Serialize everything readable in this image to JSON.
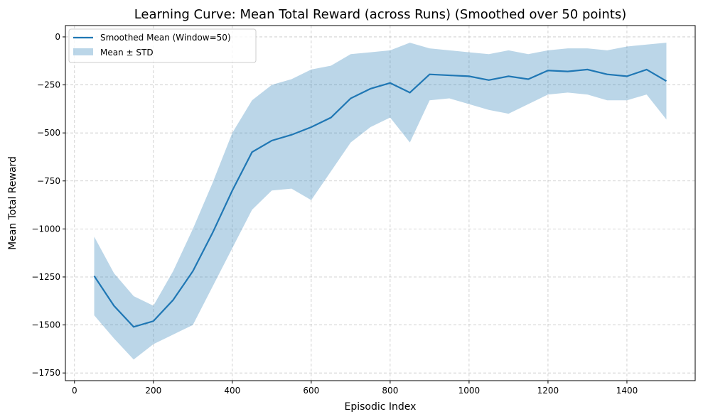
{
  "chart_data": {
    "type": "line",
    "title": "Learning Curve: Mean Total Reward (across Runs) (Smoothed over 50 points)",
    "xlabel": "Episodic Index",
    "ylabel": "Mean Total Reward",
    "x": [
      50,
      100,
      150,
      200,
      250,
      300,
      350,
      400,
      450,
      500,
      550,
      600,
      650,
      700,
      750,
      800,
      850,
      900,
      950,
      1000,
      1050,
      1100,
      1150,
      1200,
      1250,
      1300,
      1350,
      1400,
      1450,
      1500
    ],
    "series": [
      {
        "name": "Smoothed Mean (Window=50)",
        "color": "#1f77b4",
        "values": [
          -1245,
          -1400,
          -1510,
          -1480,
          -1370,
          -1220,
          -1020,
          -800,
          -600,
          -540,
          -510,
          -470,
          -420,
          -320,
          -270,
          -240,
          -290,
          -195,
          -200,
          -205,
          -225,
          -205,
          -220,
          -175,
          -180,
          -170,
          -195,
          -205,
          -170,
          -230
        ]
      }
    ],
    "band": {
      "name": "Mean ± STD",
      "color": "#1f77b4",
      "upper": [
        -1040,
        -1230,
        -1350,
        -1400,
        -1220,
        -1000,
        -760,
        -500,
        -330,
        -250,
        -220,
        -170,
        -150,
        -90,
        -80,
        -70,
        -30,
        -60,
        -70,
        -80,
        -90,
        -70,
        -90,
        -70,
        -60,
        -60,
        -70,
        -50,
        -40,
        -30
      ],
      "lower": [
        -1450,
        -1570,
        -1680,
        -1600,
        -1550,
        -1500,
        -1300,
        -1100,
        -900,
        -800,
        -790,
        -850,
        -700,
        -550,
        -470,
        -420,
        -550,
        -330,
        -320,
        -350,
        -380,
        -400,
        -350,
        -300,
        -290,
        -300,
        -330,
        -330,
        -300,
        -430
      ]
    },
    "xlim": [
      -23,
      1573
    ],
    "ylim": [
      -1790,
      59
    ],
    "xticks": [
      0,
      200,
      400,
      600,
      800,
      1000,
      1200,
      1400
    ],
    "yticks": [
      0,
      {
        "value": -250,
        "label": "−250"
      },
      {
        "value": -500,
        "label": "−500"
      },
      {
        "value": -750,
        "label": "−750"
      },
      {
        "value": -1000,
        "label": "−1000"
      },
      {
        "value": -1250,
        "label": "−1250"
      },
      {
        "value": -1500,
        "label": "−1500"
      },
      {
        "value": -1750,
        "label": "−1750"
      }
    ],
    "grid": true,
    "legend": "upper left"
  }
}
